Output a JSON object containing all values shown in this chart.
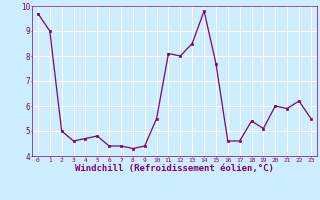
{
  "x": [
    0,
    1,
    2,
    3,
    4,
    5,
    6,
    7,
    8,
    9,
    10,
    11,
    12,
    13,
    14,
    15,
    16,
    17,
    18,
    19,
    20,
    21,
    22,
    23
  ],
  "y": [
    9.7,
    9.0,
    5.0,
    4.6,
    4.7,
    4.8,
    4.4,
    4.4,
    4.3,
    4.4,
    5.5,
    8.1,
    8.0,
    8.5,
    9.8,
    7.7,
    4.6,
    4.6,
    5.4,
    5.1,
    6.0,
    5.9,
    6.2,
    5.5
  ],
  "line_color": "#800080",
  "marker": "s",
  "marker_size": 1.8,
  "bg_color": "#cceeff",
  "grid_color": "#ffffff",
  "xlabel": "Windchill (Refroidissement éolien,°C)",
  "xlabel_fontsize": 6.5,
  "tick_label_color": "#800080",
  "axis_label_color": "#800080",
  "xlim": [
    -0.5,
    23.5
  ],
  "ylim": [
    4.0,
    10.0
  ],
  "yticks": [
    4,
    5,
    6,
    7,
    8,
    9,
    10
  ],
  "xticks": [
    0,
    1,
    2,
    3,
    4,
    5,
    6,
    7,
    8,
    9,
    10,
    11,
    12,
    13,
    14,
    15,
    16,
    17,
    18,
    19,
    20,
    21,
    22,
    23
  ]
}
